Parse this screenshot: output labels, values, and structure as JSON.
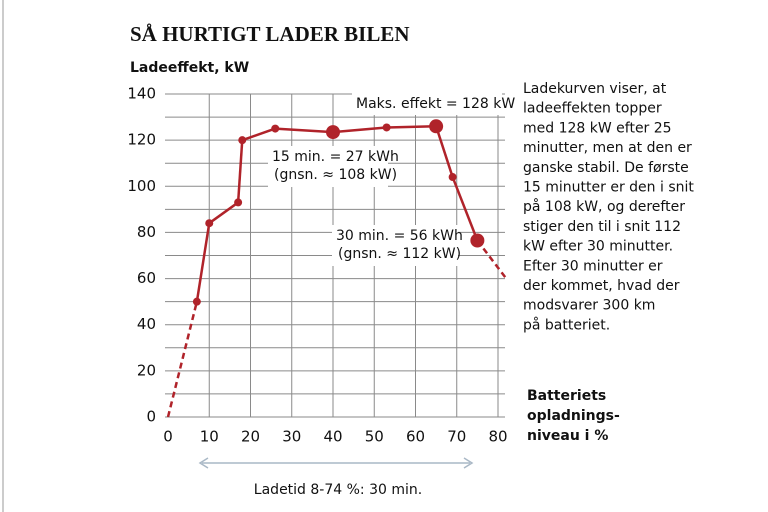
{
  "chart_data": {
    "type": "line",
    "title": "SÅ HURTIGT LADER BILEN",
    "y_label": "Ladeeffekt, kW",
    "x_label": [
      "Batteriets",
      "opladnings-",
      "niveau i %"
    ],
    "x": [
      0,
      7,
      10,
      17,
      18,
      26,
      40,
      53,
      65,
      69,
      75,
      82
    ],
    "values": [
      0,
      50,
      84,
      93,
      120,
      125,
      123.5,
      125.5,
      126,
      104,
      76.5,
      60
    ],
    "color": "#b0232a",
    "xlim": [
      0,
      80
    ],
    "xticks": [
      0,
      10,
      20,
      30,
      40,
      50,
      60,
      70,
      80
    ],
    "ylim": [
      0,
      140
    ],
    "yticks": [
      0,
      20,
      40,
      60,
      80,
      100,
      120,
      140
    ],
    "yminorticks": [
      10,
      30,
      50,
      70,
      90,
      110,
      130
    ],
    "grid": true,
    "annotations": [
      [
        "Maks. effekt = 128 kW"
      ],
      [
        "15 min. = 27 kWh",
        "(gnsn. ≈ 108 kW)"
      ],
      [
        "30 min. = 56 kWh",
        "(gnsn. ≈ 112 kW)"
      ]
    ],
    "span_label": "Ladetid 8-74 %: 30 min.",
    "note": [
      "Ladekurven viser, at",
      "ladeeffekten topper",
      "med 128 kW efter 25",
      "minutter, men at den er",
      "ganske stabil. De første",
      "15 minutter er den i snit",
      "på 108 kW, og derefter",
      "stiger den til i snit 112",
      "kW efter 30 minutter.",
      "Efter 30 minutter er",
      "der kommet, hvad der",
      "modsvarer 300 km",
      "på batteriet."
    ]
  }
}
